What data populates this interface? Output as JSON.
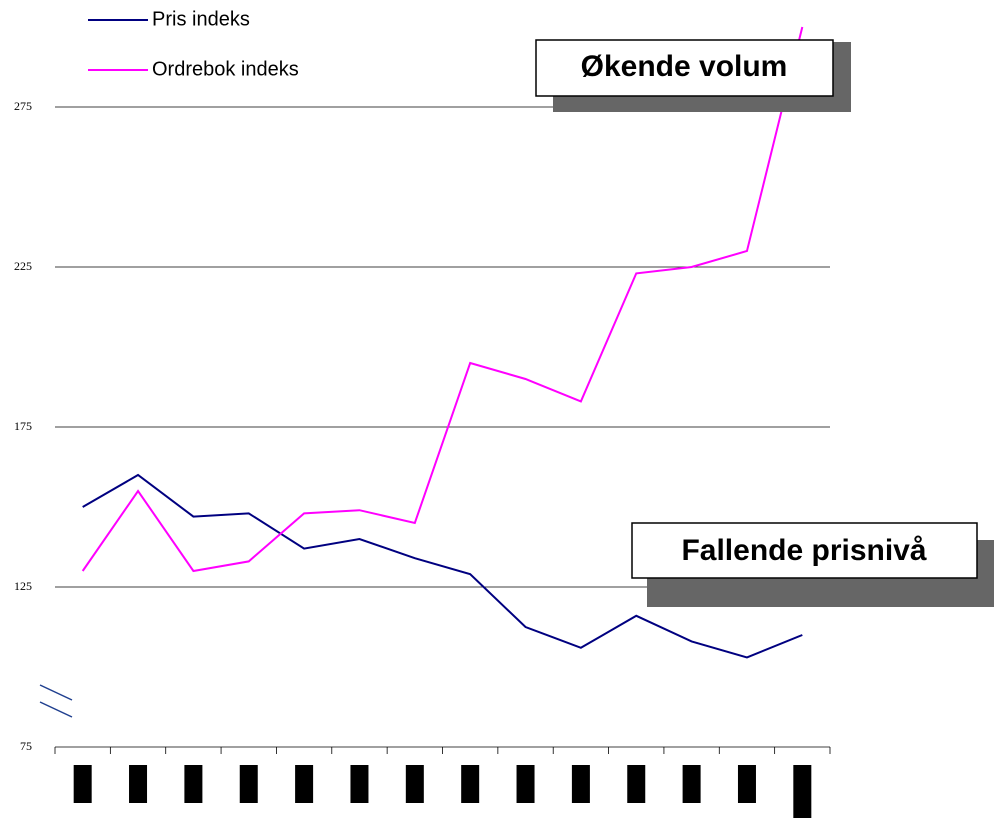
{
  "chart_data": {
    "type": "line",
    "categories": [
      null,
      null,
      null,
      null,
      null,
      null,
      null,
      null,
      null,
      null,
      null,
      null,
      null,
      null
    ],
    "series": [
      {
        "name": "Pris indeks",
        "color": "#000080",
        "values": [
          150,
          160,
          147,
          148,
          137,
          140,
          134,
          129,
          112.5,
          106,
          116,
          108,
          103,
          110
        ]
      },
      {
        "name": "Ordrebok indeks",
        "color": "#ff00ff",
        "values": [
          130,
          155,
          130,
          133,
          148,
          149,
          145,
          195,
          190,
          183,
          223,
          225,
          230,
          300
        ]
      }
    ],
    "ylim": [
      75,
      300
    ],
    "yticks": [
      75,
      125,
      175,
      225,
      275
    ],
    "grid": true,
    "annotations": [
      "Økende volum",
      "Fallende prisnivå"
    ]
  }
}
